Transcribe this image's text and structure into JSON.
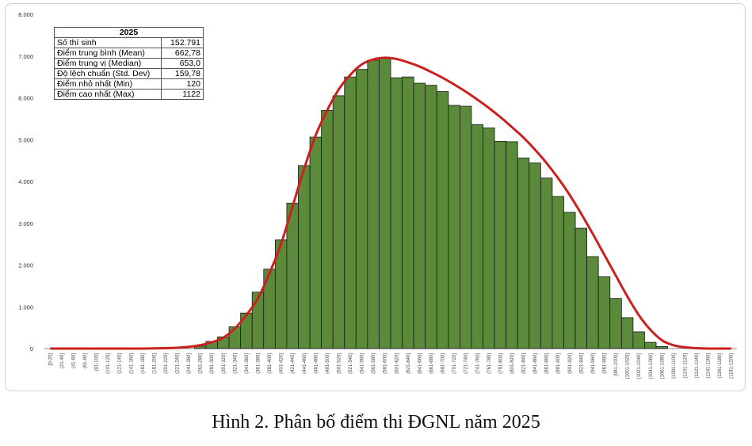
{
  "caption": "Hình 2. Phân bố điểm thi ĐGNL năm 2025",
  "stats": {
    "header": "2025",
    "rows": [
      {
        "label": "Số thí sinh",
        "value": "152.791"
      },
      {
        "label": "Điểm trung bình (Mean)",
        "value": "662,78"
      },
      {
        "label": "Điểm trung vị (Median)",
        "value": "653,0"
      },
      {
        "label": "Độ lệch chuẩn (Std. Dev)",
        "value": "159,78"
      },
      {
        "label": "Điểm nhỏ nhất (Min)",
        "value": "120"
      },
      {
        "label": "Điểm cao nhất (Max)",
        "value": "1122"
      }
    ]
  },
  "colors": {
    "bar": "#5b8a3a",
    "bar_edge": "#1a1a1a",
    "curve": "#cc1f1f",
    "axis": "#888888"
  },
  "chart_data": {
    "type": "bar",
    "ylim": [
      0,
      8000
    ],
    "yticks": [
      "0",
      "1.000",
      "2.000",
      "3.000",
      "4.000",
      "5.000",
      "6.000",
      "7.000",
      "8.000"
    ],
    "ytick_values": [
      0,
      1000,
      2000,
      3000,
      4000,
      5000,
      6000,
      7000,
      8000
    ],
    "categories": [
      "[0-20]",
      "(21-40]",
      "(41-60]",
      "(61-80]",
      "(81-100]",
      "(101-120]",
      "(121-140]",
      "(141-160]",
      "(161-180]",
      "(181-200]",
      "(201-220]",
      "(221-240]",
      "(241-260]",
      "(261-280]",
      "(281-300]",
      "(301-320]",
      "(321-340]",
      "(341-360]",
      "(361-380]",
      "(381-400]",
      "(401-420]",
      "(421-440]",
      "(441-460]",
      "(461-480]",
      "(481-500]",
      "(501-520]",
      "(521-540]",
      "(541-560]",
      "(561-580]",
      "(581-600]",
      "(601-620]",
      "(621-640]",
      "(641-660]",
      "(661-680]",
      "(681-700]",
      "(701-720]",
      "(721-740]",
      "(741-760]",
      "(761-780]",
      "(781-800]",
      "(801-820]",
      "(821-840]",
      "(841-860]",
      "(861-880]",
      "(881-900]",
      "(901-920]",
      "(921-940]",
      "(941-960]",
      "(961-980]",
      "(981-1000]",
      "(1001-1020]",
      "(1021-1040]",
      "(1041-1060]",
      "(1061-1080]",
      "(1081-1100]",
      "(1101-1120]",
      "(1121-1140]",
      "(1141-1160]",
      "(1161-1180]",
      "(1181-1200]"
    ],
    "values": [
      0,
      0,
      0,
      0,
      0,
      0,
      0,
      0,
      0,
      0,
      0,
      0,
      0,
      60,
      170,
      280,
      520,
      850,
      1350,
      1900,
      2600,
      3480,
      4380,
      5060,
      5700,
      6050,
      6500,
      6680,
      6900,
      6950,
      6480,
      6500,
      6350,
      6300,
      6150,
      5820,
      5800,
      5360,
      5280,
      4960,
      4950,
      4560,
      4440,
      4080,
      3640,
      3260,
      2880,
      2200,
      1720,
      1200,
      740,
      400,
      150,
      50,
      0,
      0,
      0,
      0,
      0,
      0
    ],
    "curve": [
      0,
      0,
      0,
      0,
      0,
      0,
      0,
      0,
      0,
      5,
      10,
      20,
      40,
      80,
      150,
      260,
      480,
      800,
      1200,
      1800,
      2500,
      3400,
      4300,
      5100,
      5700,
      6200,
      6550,
      6800,
      6920,
      6960,
      6930,
      6850,
      6750,
      6620,
      6480,
      6320,
      6150,
      5960,
      5760,
      5540,
      5300,
      5050,
      4760,
      4440,
      4080,
      3680,
      3230,
      2750,
      2250,
      1750,
      1250,
      800,
      450,
      200,
      80,
      30,
      10,
      0,
      0,
      0
    ]
  }
}
